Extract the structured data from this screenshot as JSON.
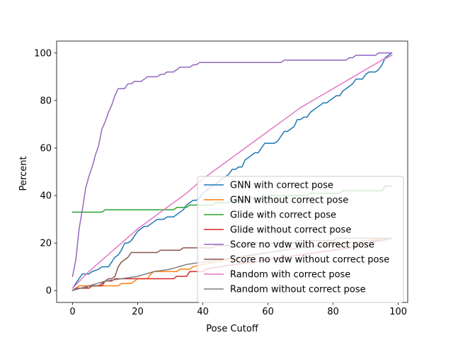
{
  "chart_data": {
    "type": "line",
    "title": "",
    "xlabel": "Pose Cutoff",
    "ylabel": "Percent",
    "xlim": [
      -4.9,
      102.9
    ],
    "ylim": [
      -5,
      105
    ],
    "xticks": [
      0,
      20,
      40,
      60,
      80,
      100
    ],
    "yticks": [
      0,
      20,
      40,
      60,
      80,
      100
    ],
    "grid": false,
    "legend_position": "lower-right",
    "series": [
      {
        "name": "GNN with correct pose",
        "color": "#1f77b4",
        "points": [
          [
            0,
            1
          ],
          [
            1,
            3
          ],
          [
            2,
            5
          ],
          [
            3,
            7
          ],
          [
            5,
            7
          ],
          [
            6,
            8
          ],
          [
            8,
            9
          ],
          [
            9,
            10
          ],
          [
            11,
            10
          ],
          [
            12,
            12
          ],
          [
            13,
            14
          ],
          [
            14,
            15
          ],
          [
            15,
            17
          ],
          [
            16,
            20
          ],
          [
            17,
            20
          ],
          [
            18,
            21
          ],
          [
            19,
            23
          ],
          [
            20,
            25
          ],
          [
            21,
            26
          ],
          [
            22,
            27
          ],
          [
            23,
            27
          ],
          [
            24,
            28
          ],
          [
            25,
            29
          ],
          [
            26,
            30
          ],
          [
            28,
            30
          ],
          [
            29,
            31
          ],
          [
            31,
            31
          ],
          [
            32,
            32
          ],
          [
            33,
            33
          ],
          [
            34,
            34
          ],
          [
            35,
            36
          ],
          [
            36,
            37
          ],
          [
            37,
            38
          ],
          [
            38,
            38
          ],
          [
            39,
            39
          ],
          [
            40,
            41
          ],
          [
            41,
            42
          ],
          [
            42,
            43
          ],
          [
            43,
            44
          ],
          [
            44,
            45
          ],
          [
            45,
            46
          ],
          [
            46,
            47
          ],
          [
            47,
            48
          ],
          [
            48,
            49
          ],
          [
            49,
            51
          ],
          [
            50,
            51
          ],
          [
            51,
            52
          ],
          [
            52,
            52
          ],
          [
            53,
            55
          ],
          [
            54,
            56
          ],
          [
            55,
            57
          ],
          [
            56,
            58
          ],
          [
            57,
            58
          ],
          [
            58,
            60
          ],
          [
            59,
            62
          ],
          [
            62,
            62
          ],
          [
            63,
            63
          ],
          [
            64,
            65
          ],
          [
            65,
            67
          ],
          [
            66,
            67
          ],
          [
            67,
            68
          ],
          [
            68,
            69
          ],
          [
            69,
            72
          ],
          [
            70,
            72
          ],
          [
            71,
            73
          ],
          [
            72,
            73
          ],
          [
            73,
            75
          ],
          [
            74,
            76
          ],
          [
            75,
            77
          ],
          [
            76,
            78
          ],
          [
            77,
            79
          ],
          [
            78,
            79
          ],
          [
            79,
            80
          ],
          [
            80,
            81
          ],
          [
            81,
            82
          ],
          [
            82,
            82
          ],
          [
            83,
            84
          ],
          [
            84,
            85
          ],
          [
            85,
            86
          ],
          [
            86,
            87
          ],
          [
            87,
            89
          ],
          [
            89,
            89
          ],
          [
            90,
            91
          ],
          [
            91,
            92
          ],
          [
            93,
            92
          ],
          [
            94,
            93
          ],
          [
            95,
            95
          ],
          [
            96,
            98
          ],
          [
            97,
            99
          ],
          [
            98,
            100
          ]
        ]
      },
      {
        "name": "GNN without correct pose",
        "color": "#ff7f0e",
        "points": [
          [
            0,
            0
          ],
          [
            1,
            1
          ],
          [
            2,
            2
          ],
          [
            4,
            2
          ],
          [
            5,
            2
          ],
          [
            14,
            2
          ],
          [
            15,
            3
          ],
          [
            18,
            3
          ],
          [
            19,
            4
          ],
          [
            20,
            5
          ],
          [
            23,
            5
          ],
          [
            24,
            7
          ],
          [
            25,
            8
          ],
          [
            32,
            8
          ],
          [
            33,
            9
          ],
          [
            36,
            9
          ],
          [
            37,
            10
          ],
          [
            40,
            11
          ],
          [
            44,
            12
          ],
          [
            48,
            13
          ],
          [
            52,
            14
          ],
          [
            56,
            15
          ],
          [
            60,
            16
          ],
          [
            64,
            17
          ],
          [
            70,
            18
          ],
          [
            76,
            19
          ],
          [
            84,
            20
          ],
          [
            90,
            21
          ],
          [
            98,
            22
          ]
        ]
      },
      {
        "name": "Glide with correct pose",
        "color": "#2ca02c",
        "points": [
          [
            0,
            33
          ],
          [
            9,
            33
          ],
          [
            10,
            34
          ],
          [
            31,
            34
          ],
          [
            32,
            35
          ],
          [
            35,
            35
          ],
          [
            36,
            36
          ],
          [
            43,
            36
          ],
          [
            44,
            37
          ],
          [
            48,
            37
          ],
          [
            49,
            38
          ],
          [
            54,
            38
          ],
          [
            55,
            39
          ],
          [
            60,
            39
          ],
          [
            61,
            40
          ],
          [
            72,
            40
          ],
          [
            73,
            41
          ],
          [
            82,
            41
          ],
          [
            83,
            42
          ],
          [
            95,
            42
          ],
          [
            96,
            44
          ],
          [
            98,
            44
          ]
        ]
      },
      {
        "name": "Glide without correct pose",
        "color": "#d62728",
        "points": [
          [
            0,
            0
          ],
          [
            1,
            1
          ],
          [
            5,
            1
          ],
          [
            6,
            2
          ],
          [
            9,
            2
          ],
          [
            10,
            4
          ],
          [
            12,
            4
          ],
          [
            13,
            5
          ],
          [
            31,
            5
          ],
          [
            32,
            6
          ],
          [
            35,
            6
          ],
          [
            36,
            8
          ],
          [
            40,
            8
          ],
          [
            41,
            9
          ],
          [
            45,
            10
          ],
          [
            50,
            11
          ],
          [
            55,
            12
          ],
          [
            60,
            13
          ],
          [
            65,
            14
          ],
          [
            70,
            15
          ],
          [
            75,
            16
          ],
          [
            80,
            17
          ],
          [
            85,
            18
          ],
          [
            90,
            20
          ],
          [
            95,
            21
          ],
          [
            98,
            22
          ]
        ]
      },
      {
        "name": "Score no vdw with correct pose",
        "color": "#9467bd",
        "points": [
          [
            0,
            6
          ],
          [
            1,
            13
          ],
          [
            2,
            26
          ],
          [
            3,
            34
          ],
          [
            4,
            43
          ],
          [
            5,
            48
          ],
          [
            6,
            52
          ],
          [
            7,
            57
          ],
          [
            8,
            61
          ],
          [
            9,
            68
          ],
          [
            10,
            71
          ],
          [
            11,
            75
          ],
          [
            12,
            78
          ],
          [
            13,
            82
          ],
          [
            14,
            85
          ],
          [
            16,
            85
          ],
          [
            17,
            87
          ],
          [
            18,
            87
          ],
          [
            19,
            88
          ],
          [
            21,
            88
          ],
          [
            22,
            89
          ],
          [
            23,
            90
          ],
          [
            26,
            90
          ],
          [
            27,
            91
          ],
          [
            28,
            91
          ],
          [
            29,
            92
          ],
          [
            31,
            92
          ],
          [
            32,
            93
          ],
          [
            33,
            94
          ],
          [
            36,
            94
          ],
          [
            37,
            95
          ],
          [
            38,
            95
          ],
          [
            39,
            96
          ],
          [
            64,
            96
          ],
          [
            65,
            97
          ],
          [
            84,
            97
          ],
          [
            85,
            98
          ],
          [
            86,
            98
          ],
          [
            87,
            99
          ],
          [
            92,
            99
          ],
          [
            93,
            99
          ],
          [
            94,
            100
          ],
          [
            98,
            100
          ]
        ]
      },
      {
        "name": "Score no vdw without correct pose",
        "color": "#8c564b",
        "points": [
          [
            0,
            0
          ],
          [
            1,
            1
          ],
          [
            4,
            1
          ],
          [
            5,
            2
          ],
          [
            8,
            2
          ],
          [
            9,
            3
          ],
          [
            10,
            4
          ],
          [
            11,
            5
          ],
          [
            12,
            5
          ],
          [
            13,
            6
          ],
          [
            14,
            10
          ],
          [
            15,
            12
          ],
          [
            16,
            13
          ],
          [
            17,
            14
          ],
          [
            18,
            16
          ],
          [
            26,
            16
          ],
          [
            27,
            17
          ],
          [
            33,
            17
          ],
          [
            34,
            18
          ],
          [
            43,
            18
          ],
          [
            44,
            19
          ],
          [
            52,
            19
          ],
          [
            53,
            20
          ],
          [
            68,
            20
          ],
          [
            69,
            21
          ],
          [
            80,
            21
          ],
          [
            81,
            22
          ],
          [
            98,
            22
          ]
        ]
      },
      {
        "name": "Random with correct pose",
        "color": "#e377c2",
        "points": [
          [
            0,
            1
          ],
          [
            5,
            8
          ],
          [
            10,
            14
          ],
          [
            15,
            20
          ],
          [
            20,
            26
          ],
          [
            25,
            31
          ],
          [
            30,
            36
          ],
          [
            35,
            41
          ],
          [
            40,
            47
          ],
          [
            45,
            52
          ],
          [
            50,
            57
          ],
          [
            55,
            62
          ],
          [
            60,
            67
          ],
          [
            65,
            72
          ],
          [
            70,
            77
          ],
          [
            75,
            81
          ],
          [
            80,
            85
          ],
          [
            85,
            89
          ],
          [
            90,
            93
          ],
          [
            95,
            97
          ],
          [
            98,
            99
          ]
        ]
      },
      {
        "name": "Random without correct pose",
        "color": "#7f7f7f",
        "points": [
          [
            0,
            0
          ],
          [
            5,
            2
          ],
          [
            10,
            4
          ],
          [
            15,
            5
          ],
          [
            20,
            6
          ],
          [
            25,
            8
          ],
          [
            30,
            9
          ],
          [
            35,
            11
          ],
          [
            40,
            12
          ],
          [
            45,
            13
          ],
          [
            50,
            14
          ],
          [
            55,
            15
          ],
          [
            60,
            16
          ],
          [
            65,
            17
          ],
          [
            70,
            18
          ],
          [
            75,
            19
          ],
          [
            80,
            19
          ],
          [
            85,
            20
          ],
          [
            90,
            21
          ],
          [
            95,
            21
          ],
          [
            98,
            22
          ]
        ]
      }
    ]
  }
}
